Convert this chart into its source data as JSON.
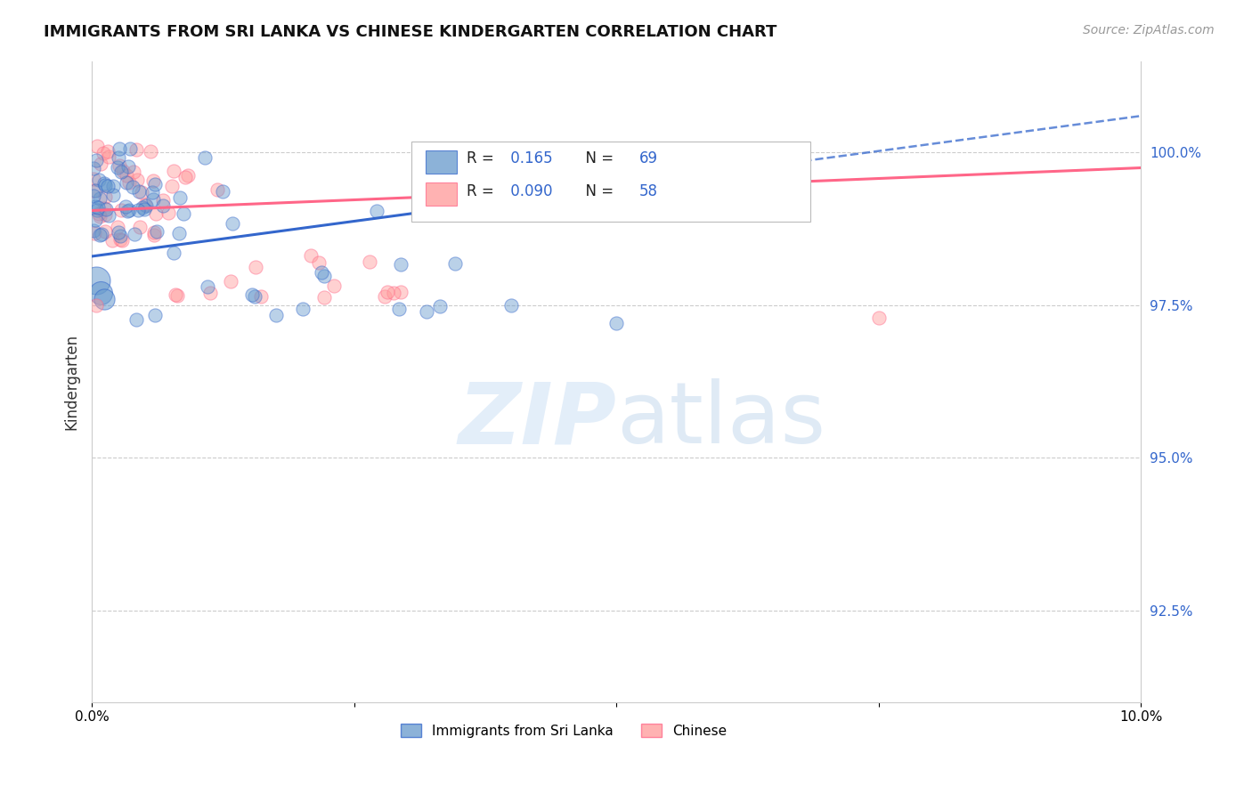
{
  "title": "IMMIGRANTS FROM SRI LANKA VS CHINESE KINDERGARTEN CORRELATION CHART",
  "source_text": "Source: ZipAtlas.com",
  "ylabel": "Kindergarten",
  "yticks": [
    92.5,
    95.0,
    97.5,
    100.0
  ],
  "ytick_labels": [
    "92.5%",
    "95.0%",
    "97.5%",
    "100.0%"
  ],
  "xmin": 0.0,
  "xmax": 10.0,
  "ymin": 91.0,
  "ymax": 101.5,
  "blue_color": "#6699CC",
  "pink_color": "#FF9999",
  "blue_line_color": "#3366CC",
  "pink_line_color": "#FF6688",
  "blue_r": "0.165",
  "blue_n": "69",
  "pink_r": "0.090",
  "pink_n": "58",
  "sl_line_y0": 98.3,
  "sl_line_y1": 100.6,
  "ch_line_y0": 99.05,
  "ch_line_y1": 99.75,
  "sl_seed": 10,
  "ch_seed": 20,
  "marker_size": 120,
  "big_marker_sizes": [
    500,
    350,
    280
  ]
}
